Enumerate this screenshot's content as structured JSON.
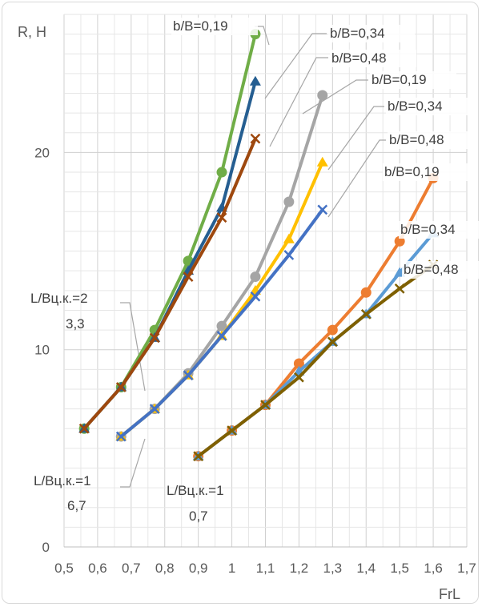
{
  "chart_data": {
    "type": "line",
    "ylabel": "R, Н",
    "xlabel": "FrL",
    "xlim": [
      0.5,
      1.7
    ],
    "ylim": [
      0,
      27
    ],
    "x_ticks": [
      "0,5",
      "0,6",
      "0,7",
      "0,8",
      "0,9",
      "1",
      "1,1",
      "1,2",
      "1,3",
      "1,4",
      "1,5",
      "1,6",
      "1,7"
    ],
    "x_tick_values": [
      0.5,
      0.6,
      0.7,
      0.8,
      0.9,
      1.0,
      1.1,
      1.2,
      1.3,
      1.4,
      1.5,
      1.6,
      1.7
    ],
    "y_ticks": [
      "0",
      "10",
      "20"
    ],
    "y_tick_values": [
      0,
      10,
      20
    ],
    "grid": true,
    "series": [
      {
        "group": "A",
        "color": "#70ad47",
        "marker": "circle",
        "label": "b/B=0,19",
        "x": [
          0.56,
          0.67,
          0.77,
          0.87,
          0.97,
          1.07
        ],
        "y": [
          6.0,
          8.1,
          11.0,
          14.5,
          19.0,
          26.0
        ]
      },
      {
        "group": "A",
        "color": "#255e91",
        "marker": "triangle",
        "label": "b/B=0,34",
        "x": [
          0.56,
          0.67,
          0.77,
          0.87,
          0.97,
          1.07
        ],
        "y": [
          6.0,
          8.1,
          10.6,
          14.0,
          17.2,
          23.6
        ]
      },
      {
        "group": "A",
        "color": "#9e480e",
        "marker": "x",
        "label": "b/B=0,48",
        "x": [
          0.56,
          0.67,
          0.77,
          0.87,
          0.97,
          1.07
        ],
        "y": [
          6.0,
          8.1,
          10.6,
          13.7,
          16.7,
          20.7
        ]
      },
      {
        "group": "B",
        "color": "#a5a5a5",
        "marker": "circle",
        "label": "b/B=0,19",
        "x": [
          0.67,
          0.77,
          0.87,
          0.97,
          1.07,
          1.17,
          1.27
        ],
        "y": [
          5.6,
          7.0,
          8.8,
          11.2,
          13.7,
          17.5,
          22.9
        ]
      },
      {
        "group": "B",
        "color": "#ffc000",
        "marker": "triangle",
        "label": "b/B=0,34",
        "x": [
          0.67,
          0.77,
          0.87,
          0.97,
          1.07,
          1.17,
          1.27
        ],
        "y": [
          5.6,
          7.0,
          8.7,
          10.7,
          13.0,
          15.6,
          19.5
        ]
      },
      {
        "group": "B",
        "color": "#4472c4",
        "marker": "x",
        "label": "b/B=0,48",
        "x": [
          0.67,
          0.77,
          0.87,
          0.97,
          1.07,
          1.17,
          1.27
        ],
        "y": [
          5.6,
          7.0,
          8.7,
          10.7,
          12.7,
          14.8,
          17.1
        ]
      },
      {
        "group": "C",
        "color": "#ed7d31",
        "marker": "circle",
        "label": "b/B=0,19",
        "x": [
          0.9,
          1.0,
          1.1,
          1.2,
          1.3,
          1.4,
          1.5,
          1.6
        ],
        "y": [
          4.6,
          5.9,
          7.2,
          9.3,
          11.0,
          12.9,
          15.5,
          18.7
        ]
      },
      {
        "group": "C",
        "color": "#5b9bd5",
        "marker": "triangle",
        "label": "b/B=0,34",
        "x": [
          0.9,
          1.0,
          1.1,
          1.2,
          1.3,
          1.4,
          1.5,
          1.6
        ],
        "y": [
          4.6,
          5.9,
          7.2,
          8.9,
          10.4,
          11.8,
          13.9,
          15.9
        ]
      },
      {
        "group": "C",
        "color": "#7f6000",
        "marker": "x",
        "label": "b/B=0,48",
        "x": [
          0.9,
          1.0,
          1.1,
          1.2,
          1.3,
          1.4,
          1.5,
          1.6
        ],
        "y": [
          4.6,
          5.9,
          7.2,
          8.6,
          10.4,
          11.8,
          13.1,
          14.3
        ]
      }
    ],
    "series_labels": [
      {
        "series": 0,
        "text": "b/B=0,19"
      },
      {
        "series": 1,
        "text": "b/B=0,34"
      },
      {
        "series": 2,
        "text": "b/B=0,48"
      },
      {
        "series": 3,
        "text": "b/B=0,19"
      },
      {
        "series": 4,
        "text": "b/B=0,34"
      },
      {
        "series": 5,
        "text": "b/B=0,48"
      },
      {
        "series": 6,
        "text": "b/B=0,19"
      },
      {
        "series": 7,
        "text": "b/B=0,34"
      },
      {
        "series": 8,
        "text": "b/B=0,48"
      }
    ],
    "group_annotations": [
      {
        "group": "A",
        "line1": "L/Вц.к.=2",
        "line2": "3,3"
      },
      {
        "group": "B",
        "line1": "L/Вц.к.=1",
        "line2": "6,7"
      },
      {
        "group": "C",
        "line1": "L/Вц.к.=1",
        "line2": "0,7"
      }
    ]
  }
}
